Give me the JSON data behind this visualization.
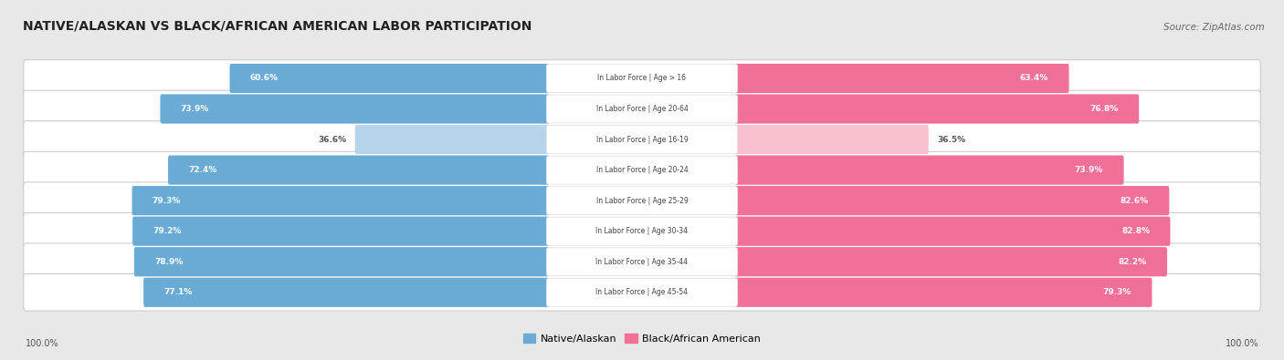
{
  "title": "NATIVE/ALASKAN VS BLACK/AFRICAN AMERICAN LABOR PARTICIPATION",
  "source": "Source: ZipAtlas.com",
  "categories": [
    "In Labor Force | Age > 16",
    "In Labor Force | Age 20-64",
    "In Labor Force | Age 16-19",
    "In Labor Force | Age 20-24",
    "In Labor Force | Age 25-29",
    "In Labor Force | Age 30-34",
    "In Labor Force | Age 35-44",
    "In Labor Force | Age 45-54"
  ],
  "native_values": [
    60.6,
    73.9,
    36.6,
    72.4,
    79.3,
    79.2,
    78.9,
    77.1
  ],
  "black_values": [
    63.4,
    76.8,
    36.5,
    73.9,
    82.6,
    82.8,
    82.2,
    79.3
  ],
  "native_color_full": "#6aabd5",
  "native_color_light": "#b8d4ea",
  "black_color_full": "#f07098",
  "black_color_light": "#f9c0d0",
  "label_color_white": "#ffffff",
  "label_color_dark": "#555555",
  "bg_color": "#e8e8e8",
  "row_bg_color": "#ffffff",
  "center_label_color": "#444444",
  "max_value": 100.0,
  "legend_native": "Native/Alaskan",
  "legend_black": "Black/African American",
  "bottom_left_label": "100.0%",
  "bottom_right_label": "100.0%",
  "light_row_index": 2
}
